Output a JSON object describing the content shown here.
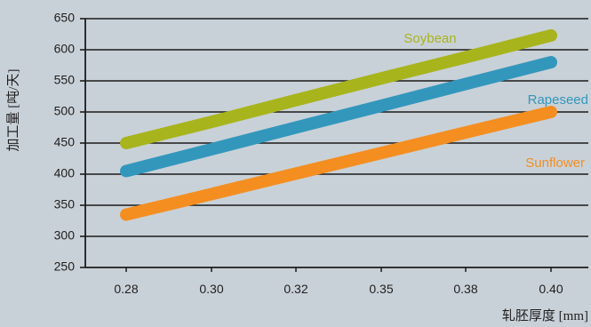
{
  "chart_data": {
    "type": "line",
    "x": [
      "0.28",
      "0.30",
      "0.32",
      "0.35",
      "0.38",
      "0.40"
    ],
    "xlabel": "轧胚厚度 [mm]",
    "ylabel": "加工量 [吨/天]",
    "ylim": [
      250,
      650
    ],
    "yticks": [
      250,
      300,
      350,
      400,
      450,
      500,
      550,
      600,
      650
    ],
    "grid": "horizontal",
    "legend": "inline labels near line ends",
    "series": [
      {
        "name": "Soybean",
        "color": "#a8b41c",
        "values": [
          450,
          484,
          519,
          554,
          588,
          623
        ]
      },
      {
        "name": "Rapeseed",
        "color": "#3397bc",
        "values": [
          405,
          440,
          475,
          510,
          545,
          580
        ]
      },
      {
        "name": "Sunflower",
        "color": "#f48e21",
        "values": [
          335,
          368,
          401,
          434,
          467,
          500
        ]
      }
    ]
  }
}
